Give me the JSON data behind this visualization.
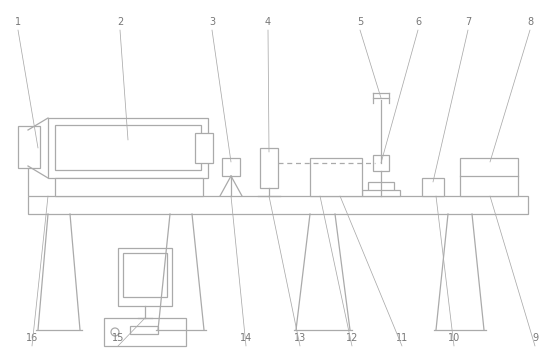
{
  "fig_width": 5.6,
  "fig_height": 3.6,
  "dpi": 100,
  "line_color": "#aaaaaa",
  "bg_color": "#ffffff",
  "label_color": "#777777",
  "label_fontsize": 7.0
}
